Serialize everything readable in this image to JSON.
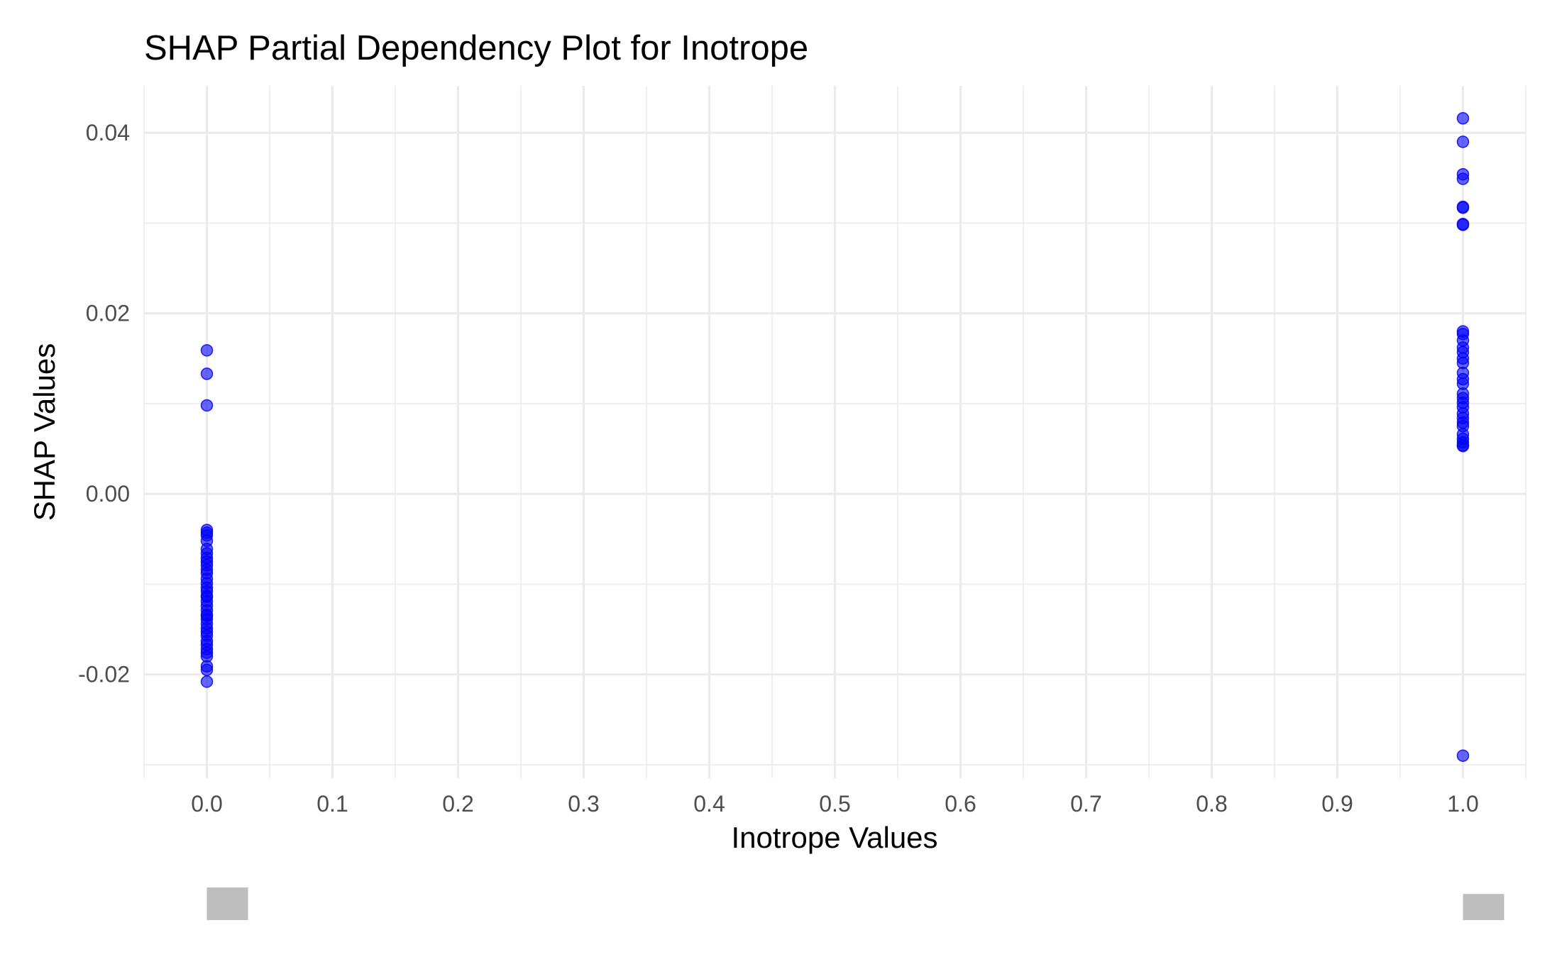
{
  "chart_data": {
    "type": "scatter",
    "title": "SHAP Partial Dependency Plot for Inotrope",
    "xlabel": "Inotrope Values",
    "ylabel": "SHAP Values",
    "xlim": [
      -0.05,
      1.05
    ],
    "ylim": [
      -0.0315,
      0.0452
    ],
    "x_ticks": [
      0.0,
      0.1,
      0.2,
      0.3,
      0.4,
      0.5,
      0.6,
      0.7,
      0.8,
      0.9,
      1.0
    ],
    "x_tick_labels": [
      "0.0",
      "0.1",
      "0.2",
      "0.3",
      "0.4",
      "0.5",
      "0.6",
      "0.7",
      "0.8",
      "0.9",
      "1.0"
    ],
    "y_ticks": [
      -0.02,
      0.0,
      0.02,
      0.04
    ],
    "y_tick_labels": [
      "-0.02",
      "0.00",
      "0.02",
      "0.04"
    ],
    "grid": true,
    "point_color": "#0000ff",
    "series": [
      {
        "x": [
          0,
          0,
          0,
          0,
          0,
          0,
          0,
          0,
          0,
          0,
          0,
          0,
          0,
          0,
          0,
          0,
          0,
          0,
          0,
          0,
          0,
          0,
          0,
          0,
          0,
          0,
          0,
          0,
          0,
          0,
          0,
          0,
          0,
          0,
          0,
          0,
          0,
          0
        ],
        "y": [
          0.0159,
          0.0133,
          0.0098,
          -0.004,
          -0.0043,
          -0.0046,
          -0.0061,
          -0.0066,
          -0.0071,
          -0.0079,
          -0.0084,
          -0.0088,
          -0.0094,
          -0.0099,
          -0.0104,
          -0.0108,
          -0.0114,
          -0.0119,
          -0.0124,
          -0.0129,
          -0.0134,
          -0.0139,
          -0.0144,
          -0.0149,
          -0.0153,
          -0.0157,
          -0.0163,
          -0.0167,
          -0.0172,
          -0.0176,
          -0.018,
          -0.0191,
          -0.0195,
          -0.0208,
          -0.0135,
          -0.0113,
          -0.0075,
          -0.0052
        ]
      },
      {
        "x": [
          1,
          1,
          1,
          1,
          1,
          1,
          1,
          1,
          1,
          1,
          1,
          1,
          1,
          1,
          1,
          1,
          1,
          1,
          1,
          1,
          1,
          1,
          1,
          1,
          1,
          1,
          1,
          1,
          1,
          1,
          1,
          1
        ],
        "y": [
          0.0416,
          0.039,
          0.0354,
          0.0349,
          0.0318,
          0.0317,
          0.0299,
          0.0298,
          0.018,
          0.0177,
          0.017,
          0.0162,
          0.0157,
          0.015,
          0.0145,
          0.0134,
          0.0127,
          0.0122,
          0.0111,
          0.0106,
          0.0101,
          0.0096,
          0.0089,
          0.0084,
          0.0079,
          0.0075,
          0.0066,
          0.0061,
          0.0057,
          0.0054,
          0.0053,
          -0.029
        ]
      }
    ],
    "marginal_distribution": [
      {
        "x": 0.0,
        "relative_count": 1.0
      },
      {
        "x": 1.0,
        "relative_count": 0.8
      }
    ]
  }
}
